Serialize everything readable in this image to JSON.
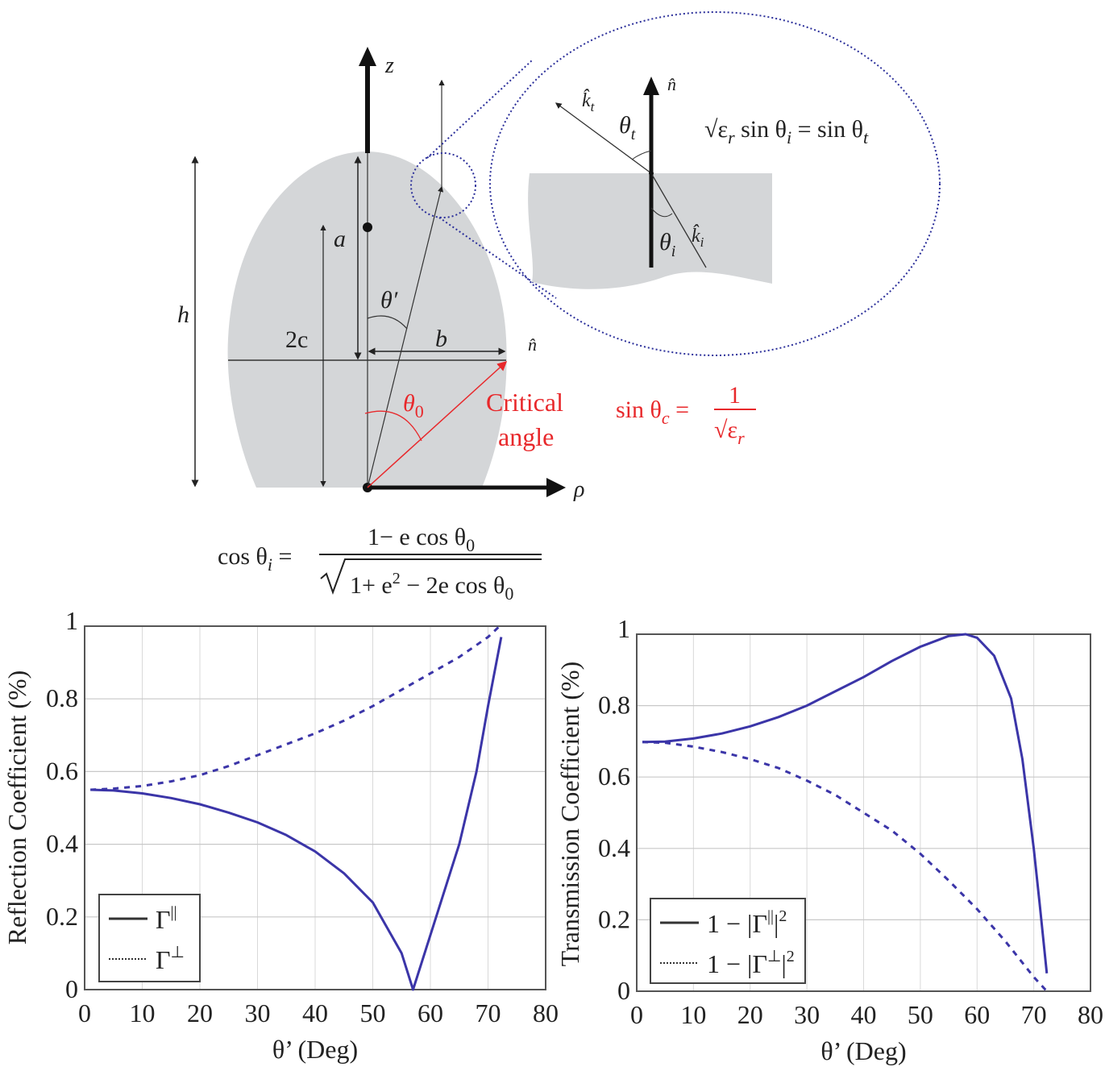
{
  "diagram": {
    "z_label": "z",
    "h_label": "h",
    "a_label": "a",
    "two_c_label": "2c",
    "theta_prime_label": "θ′",
    "b_label": "b",
    "n_hat_label": "n̂",
    "theta0": {
      "base": "θ",
      "sub": "0"
    },
    "critical_line1": "Critical",
    "critical_line2": "angle",
    "rho_label": "ρ",
    "critical_formula": {
      "lhs": "sin θ",
      "sub": "c",
      "eq": " =",
      "num": "1",
      "den": "√ε",
      "den_sub": "r"
    },
    "cos_formula": {
      "lhs": "cos θ",
      "lhs_sub": "i",
      "eq": " =",
      "num": "1− e cos θ",
      "num_sub": "0",
      "den": "1+ e",
      "den_sup": "2",
      "den_rest": " − 2e cos θ",
      "den_sub": "0"
    },
    "inset": {
      "kt_label": "k̂",
      "kt_sub": "t",
      "n_label": "n̂",
      "theta_t": "θ",
      "theta_t_sub": "t",
      "theta_i": "θ",
      "theta_i_sub": "i",
      "ki_label": "k̂",
      "ki_sub": "i",
      "snell": {
        "a": "√ε",
        "a_sub": "r",
        "b": " sin θ",
        "b_sub": "i",
        "c": " = sin θ",
        "c_sub": "t"
      }
    }
  },
  "colors": {
    "curve": "#3b35a8",
    "red": "#e8282b",
    "body": "#d4d6d8",
    "dotted": "#2b2f9a"
  },
  "chart_data": [
    {
      "type": "line",
      "title": "",
      "xlabel": "θ’ (Deg)",
      "ylabel": "Reflection Coefficient (%)",
      "xlim": [
        0,
        80
      ],
      "ylim": [
        0,
        1
      ],
      "xticks": [
        "0",
        "10",
        "20",
        "30",
        "40",
        "50",
        "60",
        "70",
        "80"
      ],
      "yticks": [
        "0",
        "0.2",
        "0.4",
        "0.6",
        "0.8",
        "1"
      ],
      "grid": true,
      "legend": {
        "placement": "bottom-left",
        "entries": [
          {
            "label": "Γ",
            "sup": "||",
            "style": "solid"
          },
          {
            "label": "Γ",
            "sup": "⊥",
            "style": "dotted"
          }
        ]
      },
      "series": [
        {
          "name": "Γ||",
          "style": "solid",
          "x": [
            1,
            5,
            10,
            15,
            20,
            25,
            30,
            35,
            40,
            45,
            50,
            55,
            57,
            60,
            65,
            68,
            70,
            72.3
          ],
          "y": [
            0.55,
            0.548,
            0.54,
            0.527,
            0.51,
            0.487,
            0.46,
            0.425,
            0.38,
            0.32,
            0.24,
            0.1,
            0,
            0.15,
            0.4,
            0.6,
            0.78,
            0.97
          ]
        },
        {
          "name": "Γ⊥",
          "style": "dotted",
          "x": [
            1,
            5,
            10,
            15,
            20,
            25,
            30,
            35,
            40,
            45,
            50,
            55,
            60,
            65,
            70,
            72
          ],
          "y": [
            0.55,
            0.553,
            0.56,
            0.573,
            0.59,
            0.615,
            0.645,
            0.675,
            0.705,
            0.74,
            0.78,
            0.825,
            0.87,
            0.915,
            0.97,
            1.0
          ]
        }
      ]
    },
    {
      "type": "line",
      "title": "",
      "xlabel": "θ’ (Deg)",
      "ylabel": "Transmission Coefficient (%)",
      "xlim": [
        0,
        80
      ],
      "ylim": [
        0,
        1
      ],
      "xticks": [
        "0",
        "10",
        "20",
        "30",
        "40",
        "50",
        "60",
        "70",
        "80"
      ],
      "yticks": [
        "0",
        "0.2",
        "0.4",
        "0.6",
        "0.8",
        "1"
      ],
      "grid": true,
      "legend": {
        "placement": "bottom-left",
        "entries": [
          {
            "label": "1 − |Γ",
            "sup": "||",
            "tail": "|",
            "sup2": "2",
            "style": "solid"
          },
          {
            "label": "1 − |Γ",
            "sup": "⊥",
            "tail": "|",
            "sup2": "2",
            "style": "dotted"
          }
        ]
      },
      "series": [
        {
          "name": "1 − |Γ||| ²",
          "style": "solid",
          "x": [
            1,
            5,
            10,
            15,
            20,
            25,
            30,
            35,
            40,
            45,
            50,
            55,
            58,
            60,
            63,
            66,
            68,
            70,
            71,
            72.3
          ],
          "y": [
            0.698,
            0.699,
            0.708,
            0.722,
            0.742,
            0.768,
            0.8,
            0.84,
            0.88,
            0.925,
            0.965,
            0.995,
            1.0,
            0.99,
            0.94,
            0.82,
            0.65,
            0.4,
            0.25,
            0.05
          ]
        },
        {
          "name": "1 − |Γ⊥|²",
          "style": "dotted",
          "x": [
            1,
            5,
            10,
            15,
            20,
            25,
            30,
            35,
            40,
            45,
            50,
            55,
            60,
            65,
            70,
            72.3
          ],
          "y": [
            0.698,
            0.696,
            0.685,
            0.67,
            0.65,
            0.625,
            0.59,
            0.55,
            0.5,
            0.45,
            0.385,
            0.31,
            0.23,
            0.14,
            0.04,
            0
          ]
        }
      ]
    }
  ]
}
